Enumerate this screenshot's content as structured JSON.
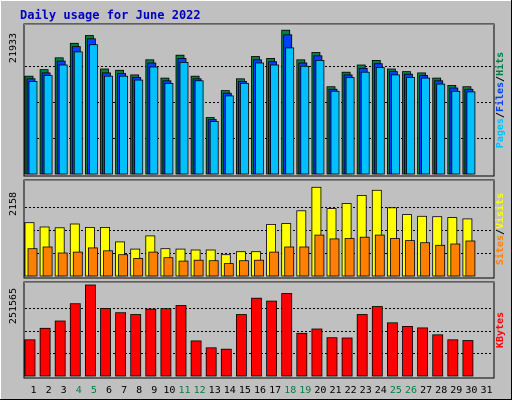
{
  "title": "Daily usage for June 2022",
  "chart_data": {
    "type": "bar",
    "title": "Daily usage for June 2022",
    "days": [
      1,
      2,
      3,
      4,
      5,
      6,
      7,
      8,
      9,
      10,
      11,
      12,
      13,
      14,
      15,
      16,
      17,
      18,
      19,
      20,
      21,
      22,
      23,
      24,
      25,
      26,
      27,
      28,
      29,
      30,
      31
    ],
    "weekend_days": [
      4,
      5,
      11,
      12,
      18,
      19,
      25,
      26
    ],
    "colors": {
      "hits": "#008040",
      "files": "#0040ff",
      "pages": "#00c0ff",
      "visits": "#ffff00",
      "sites": "#ff8000",
      "kbytes": "#ff0000",
      "title": "#0000c0",
      "weekend_tick": "#008040",
      "weekday_tick": "#000000",
      "panel_bg": "#c0c0c0"
    },
    "panels": [
      {
        "name": "hits-files-pages",
        "max_label": "21933",
        "ymax": 21933,
        "ylabel_parts": [
          {
            "text": "Pages",
            "color": "#00c0ff"
          },
          {
            "text": "/",
            "color": "#000000"
          },
          {
            "text": "Files",
            "color": "#0040ff"
          },
          {
            "text": "/",
            "color": "#000000"
          },
          {
            "text": "Hits",
            "color": "#008040"
          }
        ],
        "series": [
          {
            "name": "Hits",
            "color": "#008040",
            "values": [
              14900,
              15900,
              17700,
              19900,
              21100,
              16000,
              15800,
              15100,
              17400,
              14600,
              18100,
              14900,
              8600,
              12700,
              14500,
              17900,
              17600,
              21900,
              17400,
              18500,
              13300,
              15500,
              16600,
              17300,
              16000,
              15600,
              15400,
              14600,
              13500,
              13300,
              0
            ]
          },
          {
            "name": "Files",
            "color": "#0040ff",
            "values": [
              14500,
              15400,
              17200,
              19400,
              20600,
              15400,
              15300,
              14700,
              16900,
              14200,
              17600,
              14500,
              8300,
              12300,
              14100,
              17400,
              17100,
              21200,
              16900,
              18000,
              12900,
              15100,
              16100,
              16800,
              15600,
              15200,
              15000,
              14200,
              13100,
              12900,
              0
            ]
          },
          {
            "name": "Pages",
            "color": "#00c0ff",
            "values": [
              14100,
              15000,
              16600,
              18600,
              19700,
              14900,
              14900,
              14300,
              16300,
              13800,
              17000,
              14200,
              8000,
              11900,
              13800,
              16900,
              16600,
              19200,
              16400,
              17300,
              12600,
              14700,
              15500,
              16200,
              15100,
              14700,
              14600,
              13700,
              12600,
              12500,
              0
            ]
          }
        ]
      },
      {
        "name": "visits-sites",
        "max_label": "2158",
        "ymax": 2158,
        "ylabel_parts": [
          {
            "text": "Sites",
            "color": "#ff8000"
          },
          {
            "text": "/",
            "color": "#000000"
          },
          {
            "text": "Visits",
            "color": "#ffff00"
          }
        ],
        "series": [
          {
            "name": "Visits",
            "color": "#ffff00",
            "values": [
              1250,
              1150,
              1130,
              1220,
              1140,
              1140,
              800,
              630,
              940,
              640,
              630,
              610,
              610,
              500,
              570,
              570,
              1210,
              1230,
              1530,
              2080,
              1580,
              1700,
              1890,
              2010,
              1600,
              1440,
              1400,
              1390,
              1370,
              1340,
              0
            ]
          },
          {
            "name": "Sites",
            "color": "#ff8000",
            "values": [
              640,
              680,
              540,
              560,
              660,
              590,
              500,
              410,
              560,
              430,
              350,
              370,
              360,
              290,
              360,
              370,
              560,
              680,
              680,
              960,
              870,
              880,
              910,
              960,
              880,
              830,
              780,
              720,
              750,
              820,
              0
            ]
          }
        ]
      },
      {
        "name": "kbytes",
        "max_label": "251565",
        "ymax": 251565,
        "ylabel_parts": [
          {
            "text": "KBytes",
            "color": "#ff0000"
          }
        ],
        "series": [
          {
            "name": "KBytes",
            "color": "#ff0000",
            "values": [
              100000,
              132000,
              152000,
              200000,
              251565,
              187000,
              175000,
              170000,
              185000,
              186000,
              195000,
              97000,
              78000,
              74000,
              170000,
              215000,
              207000,
              228000,
              118000,
              130000,
              106000,
              105000,
              170000,
              192000,
              147000,
              137000,
              133000,
              114000,
              100000,
              98000,
              0
            ]
          }
        ]
      }
    ]
  }
}
